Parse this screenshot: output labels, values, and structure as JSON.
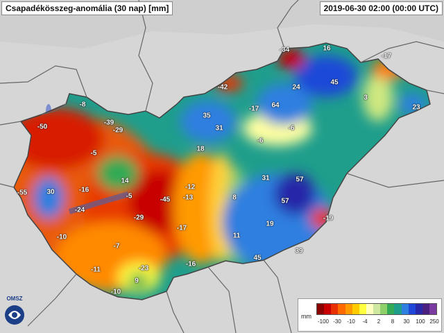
{
  "title": "Csapadékösszeg-anomália (30 nap) [mm]",
  "date": "2019-06-30 02:00 (00:00 UTC)",
  "logo": "OMSZ",
  "legend": {
    "unit": "mm",
    "colors": [
      "#8b0000",
      "#c80000",
      "#e83000",
      "#ff6a00",
      "#ff9a00",
      "#ffcc00",
      "#ffff40",
      "#ffffc0",
      "#cfe8a0",
      "#8fd06a",
      "#33aa55",
      "#1f9e8c",
      "#2f7fe0",
      "#1f48d8",
      "#2828a8",
      "#4a2080",
      "#7a3aa0"
    ],
    "labels": [
      "-100",
      "-30",
      "-10",
      "-4",
      "2",
      "8",
      "30",
      "100",
      "250"
    ]
  },
  "stations": [
    {
      "name": "b1",
      "value": "-34"
    },
    {
      "name": "b2",
      "value": "16"
    },
    {
      "name": "b3",
      "value": "-17"
    },
    {
      "name": "b4",
      "value": "45"
    },
    {
      "name": "b5",
      "value": "24"
    },
    {
      "name": "b6",
      "value": "3"
    },
    {
      "name": "b7",
      "value": "23"
    },
    {
      "name": "b8",
      "value": "-42"
    },
    {
      "name": "b9",
      "value": "-17"
    },
    {
      "name": "b10",
      "value": "64"
    },
    {
      "name": "b11",
      "value": "-8"
    },
    {
      "name": "b12",
      "value": "-50"
    },
    {
      "name": "b13",
      "value": "-39"
    },
    {
      "name": "b14",
      "value": "-29"
    },
    {
      "name": "b15",
      "value": "35"
    },
    {
      "name": "b16",
      "value": "31"
    },
    {
      "name": "b17",
      "value": "-6"
    },
    {
      "name": "b18",
      "value": "-6"
    },
    {
      "name": "b19",
      "value": "-5"
    },
    {
      "name": "b20",
      "value": "18"
    },
    {
      "name": "b21",
      "value": "14"
    },
    {
      "name": "b22",
      "value": "-55"
    },
    {
      "name": "b23",
      "value": "30"
    },
    {
      "name": "b24",
      "value": "-16"
    },
    {
      "name": "b25",
      "value": "-24"
    },
    {
      "name": "b26",
      "value": "-5"
    },
    {
      "name": "b27",
      "value": "-45"
    },
    {
      "name": "b28",
      "value": "-12"
    },
    {
      "name": "b29",
      "value": "-13"
    },
    {
      "name": "b30",
      "value": "31"
    },
    {
      "name": "b31",
      "value": "57"
    },
    {
      "name": "b32",
      "value": "57"
    },
    {
      "name": "b33",
      "value": "8"
    },
    {
      "name": "b34",
      "value": "-29"
    },
    {
      "name": "b35",
      "value": "-17"
    },
    {
      "name": "b36",
      "value": "-10"
    },
    {
      "name": "b37",
      "value": "19"
    },
    {
      "name": "b38",
      "value": "-19"
    },
    {
      "name": "b39",
      "value": "11"
    },
    {
      "name": "b40",
      "value": "-7"
    },
    {
      "name": "b41",
      "value": "-11"
    },
    {
      "name": "b42",
      "value": "-23"
    },
    {
      "name": "b43",
      "value": "-16"
    },
    {
      "name": "b44",
      "value": "39"
    },
    {
      "name": "b45",
      "value": "45"
    },
    {
      "name": "b46",
      "value": "9"
    },
    {
      "name": "b47",
      "value": "-10"
    }
  ]
}
